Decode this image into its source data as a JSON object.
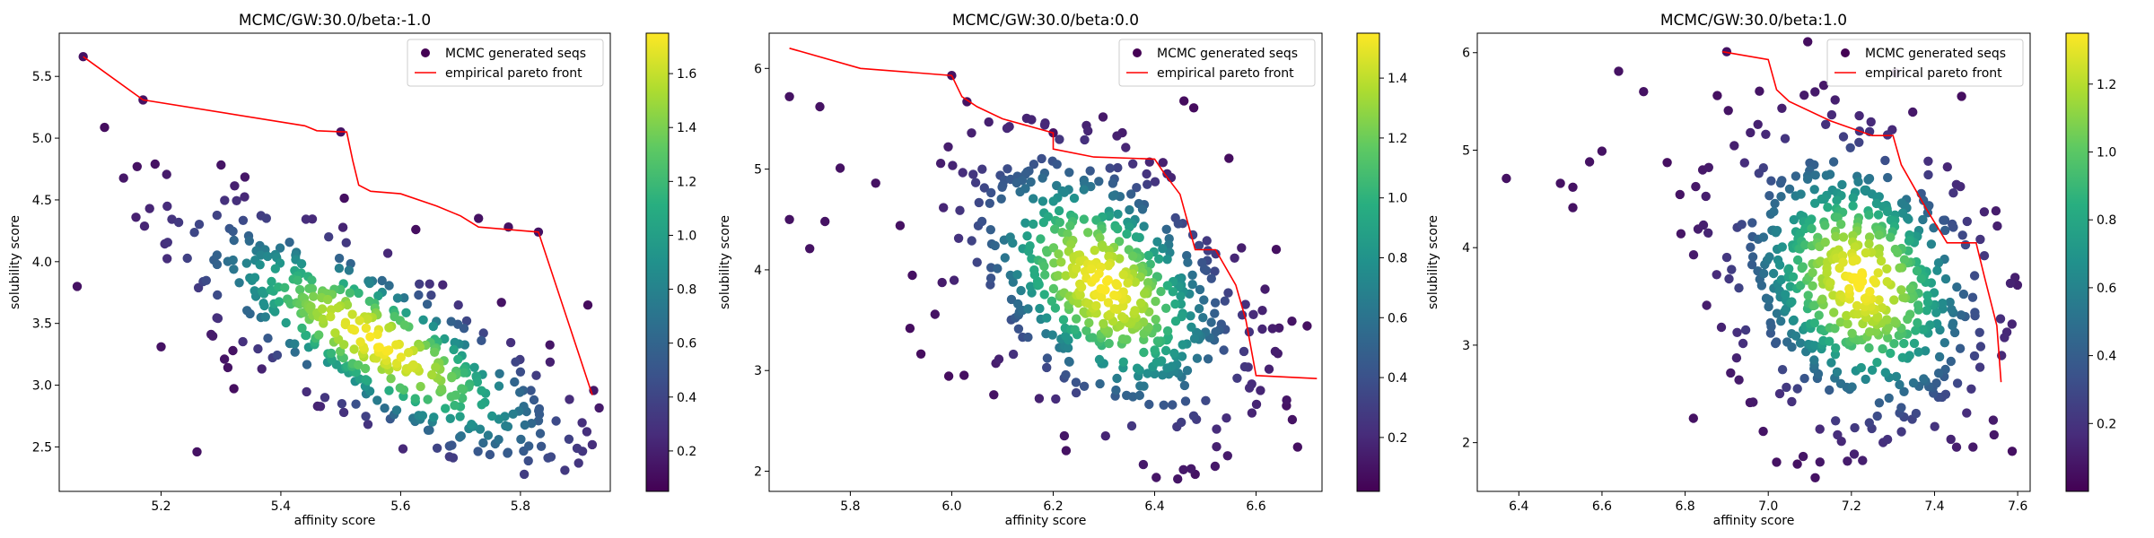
{
  "chart_data": [
    {
      "type": "scatter",
      "title": "MCMC/GW:30.0/beta:-1.0",
      "xlabel": "affinity score",
      "ylabel": "solubility score",
      "xlim": [
        5.03,
        5.95
      ],
      "ylim": [
        2.14,
        5.85
      ],
      "xticks": [
        "5.2",
        "5.4",
        "5.6",
        "5.8"
      ],
      "yticks": [
        "2.5",
        "3.0",
        "3.5",
        "4.0",
        "4.5",
        "5.0",
        "5.5"
      ],
      "legend": [
        "MCMC generated seqs",
        "empirical pareto front"
      ],
      "legend_position": "top-right",
      "colorbar": {
        "min": 0.05,
        "max": 1.75,
        "ticks": [
          "0.2",
          "0.4",
          "0.6",
          "0.8",
          "1.0",
          "1.2",
          "1.4",
          "1.6"
        ]
      },
      "cloud": {
        "n": 470,
        "center": [
          5.56,
          3.35
        ],
        "sd": [
          0.17,
          0.55
        ],
        "rho": -0.78,
        "vmin": 0.05,
        "vmax": 1.75,
        "seed": 11
      },
      "outliers": [
        [
          5.07,
          5.66
        ],
        [
          5.17,
          5.31
        ],
        [
          5.16,
          4.77
        ],
        [
          5.19,
          4.79
        ],
        [
          5.06,
          3.8
        ],
        [
          5.2,
          3.31
        ],
        [
          5.26,
          2.46
        ],
        [
          5.32,
          3.28
        ],
        [
          5.83,
          4.24
        ],
        [
          5.78,
          4.28
        ],
        [
          5.73,
          4.35
        ],
        [
          5.5,
          5.05
        ]
      ],
      "pareto_front": [
        [
          5.07,
          5.66
        ],
        [
          5.17,
          5.31
        ],
        [
          5.44,
          5.1
        ],
        [
          5.46,
          5.06
        ],
        [
          5.51,
          5.05
        ],
        [
          5.52,
          4.82
        ],
        [
          5.53,
          4.62
        ],
        [
          5.55,
          4.57
        ],
        [
          5.6,
          4.55
        ],
        [
          5.66,
          4.45
        ],
        [
          5.7,
          4.37
        ],
        [
          5.73,
          4.28
        ],
        [
          5.83,
          4.24
        ],
        [
          5.92,
          2.92
        ]
      ]
    },
    {
      "type": "scatter",
      "title": "MCMC/GW:30.0/beta:0.0",
      "xlabel": "affinity score",
      "ylabel": "solubility score",
      "xlim": [
        5.64,
        6.73
      ],
      "ylim": [
        1.8,
        6.35
      ],
      "xticks": [
        "5.8",
        "6.0",
        "6.2",
        "6.4",
        "6.6"
      ],
      "yticks": [
        "2",
        "3",
        "4",
        "5",
        "6"
      ],
      "legend": [
        "MCMC generated seqs",
        "empirical pareto front"
      ],
      "legend_position": "top-right",
      "colorbar": {
        "min": 0.02,
        "max": 1.55,
        "ticks": [
          "0.2",
          "0.4",
          "0.6",
          "0.8",
          "1.0",
          "1.2",
          "1.4"
        ]
      },
      "cloud": {
        "n": 560,
        "center": [
          6.3,
          3.85
        ],
        "sd": [
          0.14,
          0.72
        ],
        "rho": -0.42,
        "vmin": 0.02,
        "vmax": 1.55,
        "seed": 23
      },
      "outliers": [
        [
          5.68,
          5.72
        ],
        [
          5.68,
          4.5
        ],
        [
          5.74,
          5.62
        ],
        [
          5.75,
          4.48
        ],
        [
          5.78,
          5.01
        ],
        [
          5.72,
          4.21
        ],
        [
          5.85,
          4.86
        ],
        [
          6.0,
          5.93
        ],
        [
          6.03,
          5.67
        ],
        [
          6.2,
          5.36
        ],
        [
          6.66,
          2.65
        ],
        [
          6.48,
          1.97
        ]
      ],
      "pareto_front": [
        [
          5.68,
          6.2
        ],
        [
          5.82,
          6.0
        ],
        [
          6.0,
          5.93
        ],
        [
          6.02,
          5.72
        ],
        [
          6.05,
          5.62
        ],
        [
          6.1,
          5.5
        ],
        [
          6.2,
          5.36
        ],
        [
          6.2,
          5.2
        ],
        [
          6.28,
          5.12
        ],
        [
          6.4,
          5.1
        ],
        [
          6.42,
          4.95
        ],
        [
          6.45,
          4.75
        ],
        [
          6.48,
          4.2
        ],
        [
          6.52,
          4.2
        ],
        [
          6.56,
          3.85
        ],
        [
          6.58,
          3.5
        ],
        [
          6.6,
          2.95
        ],
        [
          6.72,
          2.92
        ]
      ]
    },
    {
      "type": "scatter",
      "title": "MCMC/GW:30.0/beta:1.0",
      "xlabel": "affinity score",
      "ylabel": "solubility score",
      "xlim": [
        6.3,
        7.63
      ],
      "ylim": [
        1.5,
        6.2
      ],
      "xticks": [
        "6.4",
        "6.6",
        "6.8",
        "7.0",
        "7.2",
        "7.4",
        "7.6"
      ],
      "yticks": [
        "2",
        "3",
        "4",
        "5",
        "6"
      ],
      "legend": [
        "MCMC generated seqs",
        "empirical pareto front"
      ],
      "legend_position": "top-right",
      "colorbar": {
        "min": 0.0,
        "max": 1.35,
        "ticks": [
          "0.2",
          "0.4",
          "0.6",
          "0.8",
          "1.0",
          "1.2"
        ]
      },
      "cloud": {
        "n": 600,
        "center": [
          7.22,
          3.65
        ],
        "sd": [
          0.16,
          0.78
        ],
        "rho": -0.2,
        "vmin": 0.0,
        "vmax": 1.35,
        "seed": 37
      },
      "outliers": [
        [
          6.37,
          4.71
        ],
        [
          6.5,
          4.66
        ],
        [
          6.53,
          4.62
        ],
        [
          6.53,
          4.41
        ],
        [
          6.57,
          4.88
        ],
        [
          6.6,
          4.99
        ],
        [
          6.64,
          5.81
        ],
        [
          6.7,
          5.6
        ],
        [
          6.82,
          2.25
        ],
        [
          7.02,
          1.8
        ],
        [
          7.07,
          1.78
        ],
        [
          6.9,
          6.01
        ]
      ],
      "pareto_front": [
        [
          6.89,
          6.01
        ],
        [
          7.0,
          5.93
        ],
        [
          7.02,
          5.62
        ],
        [
          7.05,
          5.5
        ],
        [
          7.15,
          5.3
        ],
        [
          7.25,
          5.15
        ],
        [
          7.3,
          5.15
        ],
        [
          7.32,
          4.85
        ],
        [
          7.38,
          4.4
        ],
        [
          7.43,
          4.05
        ],
        [
          7.5,
          4.05
        ],
        [
          7.52,
          3.7
        ],
        [
          7.55,
          3.2
        ],
        [
          7.56,
          2.62
        ]
      ]
    }
  ]
}
